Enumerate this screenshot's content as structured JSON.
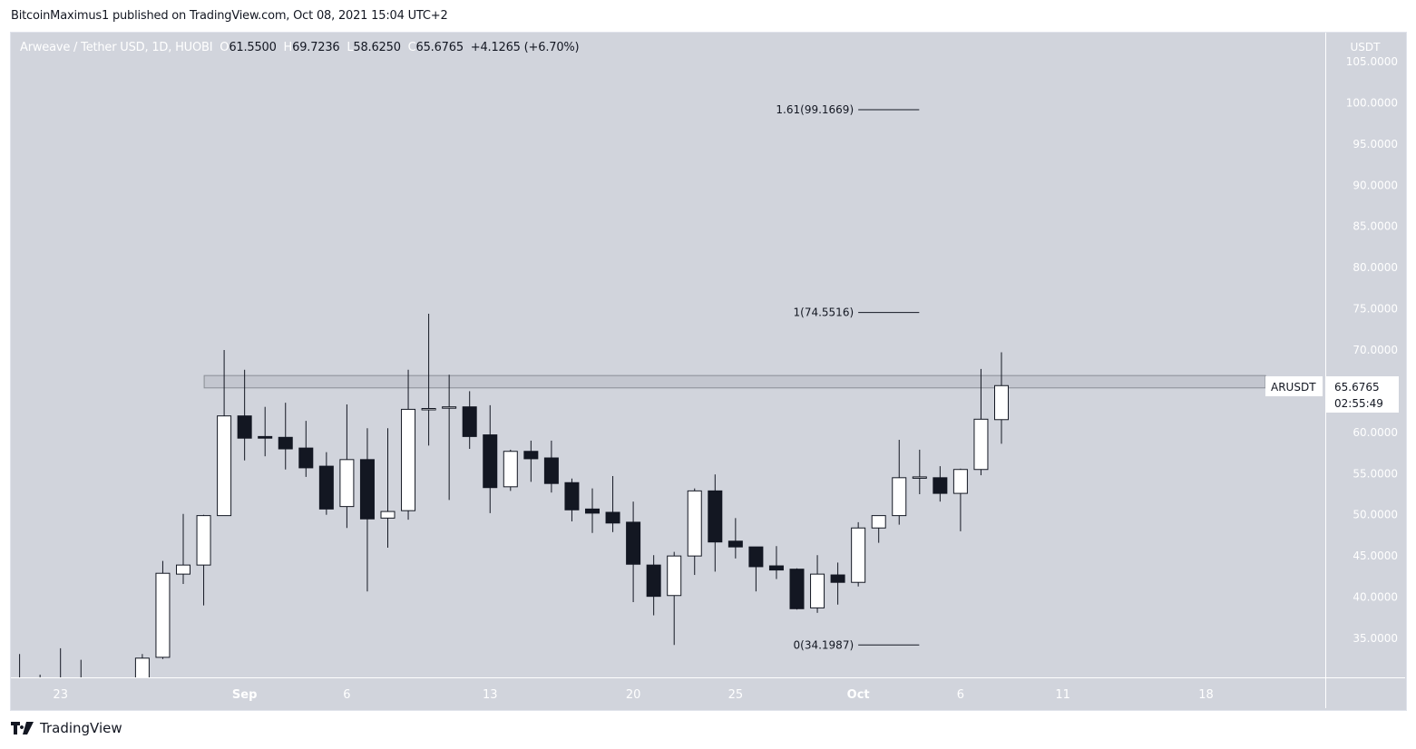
{
  "publish_line": "BitcoinMaximus1 published on TradingView.com, Oct 08, 2021 15:04 UTC+2",
  "legend": {
    "symbol": "Arweave / Tether USD, 1D, HUOBI",
    "open_key": "O",
    "open": "61.5500",
    "high_key": "H",
    "high": "69.7236",
    "low_key": "L",
    "low": "58.6250",
    "close_key": "C",
    "close": "65.6765",
    "change": "+4.1265 (+6.70%)"
  },
  "footer": {
    "brand": "TradingView"
  },
  "colors": {
    "background": "#d1d4dc",
    "up_body": "#ffffff",
    "down_body": "#131722",
    "wick": "#131722",
    "axis_text": "#ffffff",
    "zone_fill": "#c3c6cf",
    "zone_border": "#8a8d95"
  },
  "chart_data": {
    "type": "candlestick",
    "symbol_label": "ARUSDT",
    "currency_label": "USDT",
    "last_price": "65.6765",
    "countdown": "02:55:49",
    "ylim": [
      30.3,
      108.5
    ],
    "grid": false,
    "y_ticks": [
      "35.0000",
      "40.0000",
      "45.0000",
      "50.0000",
      "55.0000",
      "60.0000",
      "65.0000",
      "70.0000",
      "75.0000",
      "80.0000",
      "85.0000",
      "90.0000",
      "95.0000",
      "100.0000",
      "105.0000"
    ],
    "x_ticks": [
      {
        "date": "2021-08-23",
        "label": "23",
        "bold": false
      },
      {
        "date": "2021-09-01",
        "label": "Sep",
        "bold": true
      },
      {
        "date": "2021-09-06",
        "label": "6",
        "bold": false
      },
      {
        "date": "2021-09-13",
        "label": "13",
        "bold": false
      },
      {
        "date": "2021-09-20",
        "label": "20",
        "bold": false
      },
      {
        "date": "2021-09-25",
        "label": "25",
        "bold": false
      },
      {
        "date": "2021-10-01",
        "label": "Oct",
        "bold": true
      },
      {
        "date": "2021-10-06",
        "label": "6",
        "bold": false
      },
      {
        "date": "2021-10-11",
        "label": "11",
        "bold": false
      },
      {
        "date": "2021-10-18",
        "label": "18",
        "bold": false
      }
    ],
    "resistance_zone": {
      "from": "2021-08-31",
      "to_edge": true,
      "low": 65.4,
      "high": 66.9
    },
    "fib_levels": [
      {
        "label": "1.61(99.1669)",
        "value": 99.1669
      },
      {
        "label": "1(74.5516)",
        "value": 74.5516
      },
      {
        "label": "0(34.1987)",
        "value": 34.1987
      }
    ],
    "fib_range": {
      "from": "2021-10-01",
      "to": "2021-10-05"
    },
    "columns": [
      "date",
      "open",
      "high",
      "low",
      "close"
    ],
    "candles": [
      [
        "2021-08-21",
        29.5,
        33.1,
        27.5,
        29.0
      ],
      [
        "2021-08-22",
        29.0,
        30.6,
        27.8,
        28.6
      ],
      [
        "2021-08-23",
        28.6,
        33.8,
        27.9,
        29.8
      ],
      [
        "2021-08-24",
        29.8,
        32.4,
        28.0,
        28.4
      ],
      [
        "2021-08-25",
        28.4,
        30.0,
        27.2,
        28.0
      ],
      [
        "2021-08-26",
        28.0,
        29.9,
        26.9,
        29.4
      ],
      [
        "2021-08-27",
        29.4,
        33.1,
        28.5,
        32.6
      ],
      [
        "2021-08-28",
        32.7,
        44.4,
        32.5,
        42.9
      ],
      [
        "2021-08-29",
        42.8,
        50.1,
        41.6,
        43.9
      ],
      [
        "2021-08-30",
        43.9,
        50.0,
        39.0,
        49.9
      ],
      [
        "2021-08-31",
        49.9,
        70.0,
        49.9,
        62.0
      ],
      [
        "2021-09-01",
        62.0,
        67.6,
        56.6,
        59.3
      ],
      [
        "2021-09-02",
        59.5,
        63.1,
        57.1,
        59.3
      ],
      [
        "2021-09-03",
        59.4,
        63.6,
        55.5,
        58.0
      ],
      [
        "2021-09-04",
        58.1,
        61.4,
        54.6,
        55.7
      ],
      [
        "2021-09-05",
        55.9,
        57.6,
        50.0,
        50.7
      ],
      [
        "2021-09-06",
        51.0,
        63.4,
        48.4,
        56.7
      ],
      [
        "2021-09-07",
        56.7,
        60.5,
        40.7,
        49.5
      ],
      [
        "2021-09-08",
        49.6,
        60.5,
        46.0,
        50.4
      ],
      [
        "2021-09-09",
        50.5,
        67.6,
        49.4,
        62.8
      ],
      [
        "2021-09-10",
        62.8,
        74.4,
        58.4,
        62.9
      ],
      [
        "2021-09-11",
        63.0,
        67.0,
        51.8,
        63.1
      ],
      [
        "2021-09-12",
        63.1,
        65.0,
        58.0,
        59.5
      ],
      [
        "2021-09-13",
        59.7,
        63.3,
        50.2,
        53.3
      ],
      [
        "2021-09-14",
        53.4,
        57.9,
        52.9,
        57.7
      ],
      [
        "2021-09-15",
        57.7,
        59.0,
        54.0,
        56.8
      ],
      [
        "2021-09-16",
        56.9,
        59.0,
        52.7,
        53.8
      ],
      [
        "2021-09-17",
        53.9,
        54.4,
        49.2,
        50.6
      ],
      [
        "2021-09-18",
        50.7,
        53.2,
        47.8,
        50.2
      ],
      [
        "2021-09-19",
        50.3,
        54.7,
        47.9,
        49.0
      ],
      [
        "2021-09-20",
        49.1,
        51.6,
        39.4,
        44.0
      ],
      [
        "2021-09-21",
        43.9,
        45.1,
        37.8,
        40.1
      ],
      [
        "2021-09-22",
        40.2,
        45.5,
        34.2,
        45.0
      ],
      [
        "2021-09-23",
        45.0,
        53.2,
        42.7,
        52.9
      ],
      [
        "2021-09-24",
        52.9,
        54.9,
        43.1,
        46.7
      ],
      [
        "2021-09-25",
        46.8,
        49.6,
        44.7,
        46.1
      ],
      [
        "2021-09-26",
        46.1,
        46.1,
        40.7,
        43.7
      ],
      [
        "2021-09-27",
        43.8,
        46.2,
        42.2,
        43.3
      ],
      [
        "2021-09-28",
        43.4,
        43.5,
        38.5,
        38.6
      ],
      [
        "2021-09-29",
        38.7,
        45.1,
        38.1,
        42.8
      ],
      [
        "2021-09-30",
        42.7,
        44.2,
        39.1,
        41.8
      ],
      [
        "2021-10-01",
        41.8,
        49.1,
        41.3,
        48.4
      ],
      [
        "2021-10-02",
        48.4,
        49.9,
        46.6,
        49.9
      ],
      [
        "2021-10-03",
        49.9,
        59.1,
        48.8,
        54.5
      ],
      [
        "2021-10-04",
        54.5,
        57.9,
        52.5,
        54.6
      ],
      [
        "2021-10-05",
        54.5,
        55.9,
        51.6,
        52.6
      ],
      [
        "2021-10-06",
        52.6,
        55.6,
        48.0,
        55.5
      ],
      [
        "2021-10-07",
        55.5,
        67.7,
        54.8,
        61.6
      ],
      [
        "2021-10-08",
        61.55,
        69.7236,
        58.625,
        65.6765
      ]
    ]
  }
}
